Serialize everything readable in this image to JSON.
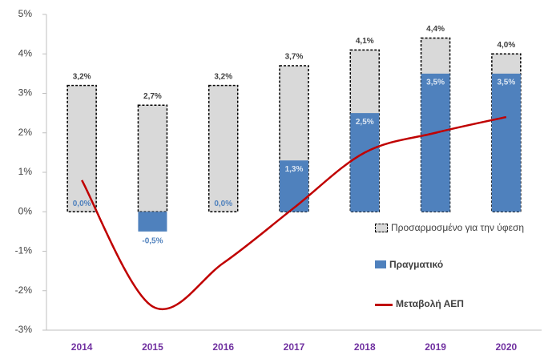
{
  "chart_data": {
    "type": "bar",
    "categories": [
      "2014",
      "2015",
      "2016",
      "2017",
      "2018",
      "2019",
      "2020"
    ],
    "series": [
      {
        "name": "Προσαρμοσμένο για την ύφεση",
        "type": "bar",
        "color": "#d9d9d9",
        "values": [
          3.2,
          2.7,
          3.2,
          3.7,
          4.1,
          4.4,
          4.0
        ],
        "value_labels": [
          "3,2%",
          "2,7%",
          "3,2%",
          "3,7%",
          "4,1%",
          "4,4%",
          "4,0%"
        ]
      },
      {
        "name": "Πραγματικό",
        "type": "bar",
        "color": "#4f81bd",
        "values": [
          0.0,
          -0.5,
          0.0,
          1.3,
          2.5,
          3.5,
          3.5
        ],
        "value_labels": [
          "0,0%",
          "-0,5%",
          "0,0%",
          "1,3%",
          "2,5%",
          "3,5%",
          "3,5%"
        ]
      },
      {
        "name": "Μεταβολή ΑΕΠ",
        "type": "line",
        "color": "#c00000",
        "values": [
          0.8,
          -2.4,
          -1.3,
          0.1,
          1.5,
          2.0,
          2.4
        ]
      }
    ],
    "ylim": [
      -3,
      5
    ],
    "yticks": [
      {
        "value": -3,
        "label": "-3%"
      },
      {
        "value": -2,
        "label": "-2%"
      },
      {
        "value": -1,
        "label": "-1%"
      },
      {
        "value": 0,
        "label": "0%"
      },
      {
        "value": 1,
        "label": "1%"
      },
      {
        "value": 2,
        "label": "2%"
      },
      {
        "value": 3,
        "label": "3%"
      },
      {
        "value": 4,
        "label": "4%"
      },
      {
        "value": 5,
        "label": "5%"
      }
    ],
    "grid": false,
    "legend": "lower right"
  }
}
